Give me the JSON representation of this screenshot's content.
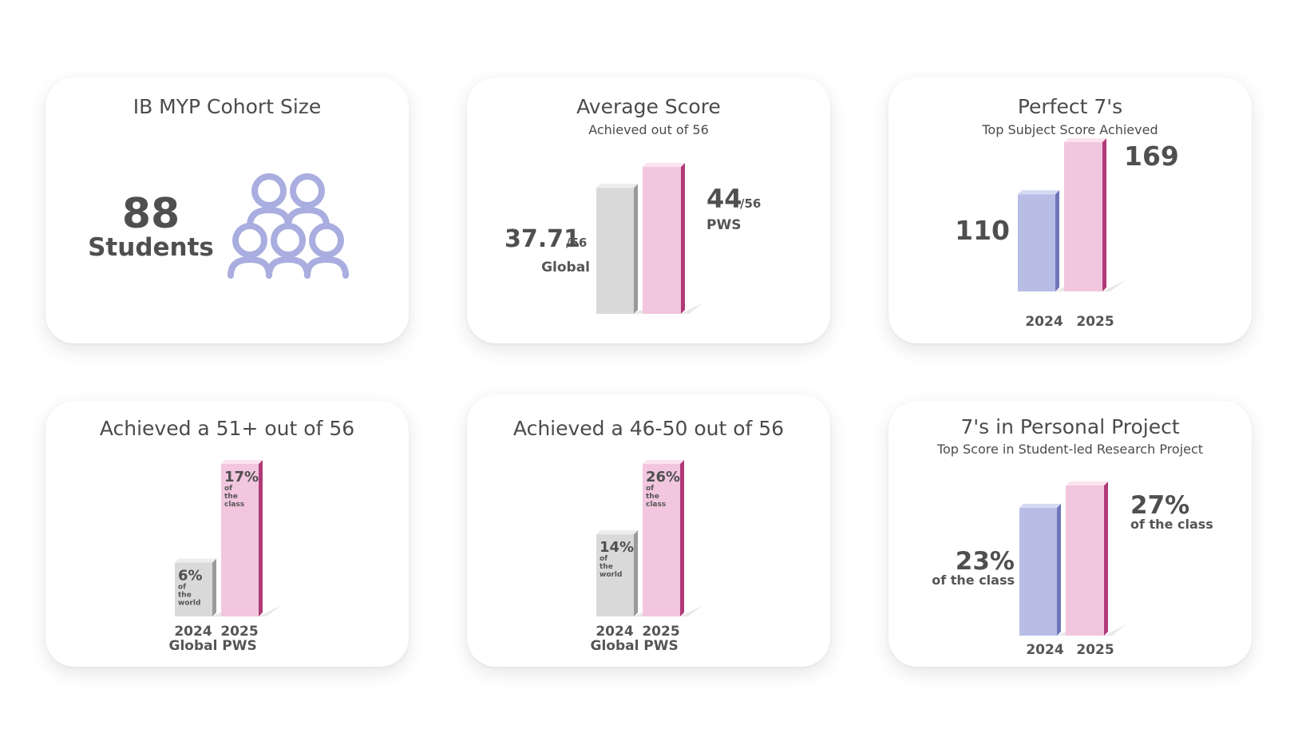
{
  "colors": {
    "pink_face": "#f2c6de",
    "pink_side": "#b03a78",
    "pink_top": "#fbe4f0",
    "gray_face": "#d9d9d9",
    "gray_side": "#9a9a9a",
    "gray_top": "#ececec",
    "blue_face": "#b8bde6",
    "blue_side": "#6f76b8",
    "blue_top": "#d6d9f3",
    "icon": "#a9addf"
  },
  "chart_data": [
    {
      "type": "other",
      "title": "IB MYP Cohort Size",
      "value": 88,
      "value_text": "88",
      "unit_text": "Students",
      "icon": "people-group-icon"
    },
    {
      "type": "bar",
      "title": "Average Score",
      "subtitle": "Achieved out of 56",
      "bars": [
        {
          "value": 37.71,
          "value_text": "37.71",
          "suffix": "/56",
          "label": "Global",
          "color": "gray"
        },
        {
          "value": 44,
          "value_text": "44",
          "suffix": "/56",
          "label": "PWS",
          "color": "pink"
        }
      ],
      "ylim": [
        0,
        56
      ]
    },
    {
      "type": "bar",
      "title": "Perfect 7's",
      "subtitle": "Top Subject Score Achieved",
      "categories": [
        "2024",
        "2025"
      ],
      "bars": [
        {
          "value": 110,
          "value_text": "110",
          "color": "blue"
        },
        {
          "value": 169,
          "value_text": "169",
          "color": "pink"
        }
      ]
    },
    {
      "type": "bar",
      "title": "Achieved a 51+ out of 56",
      "bars": [
        {
          "value": 6,
          "value_text": "6%",
          "sub": [
            "of",
            "the",
            "world"
          ],
          "year": "2024",
          "label": "Global",
          "color": "gray"
        },
        {
          "value": 17,
          "value_text": "17%",
          "sub": [
            "of",
            "the",
            "class"
          ],
          "year": "2025",
          "label": "PWS",
          "color": "pink"
        }
      ]
    },
    {
      "type": "bar",
      "title": "Achieved a 46-50 out of 56",
      "bars": [
        {
          "value": 14,
          "value_text": "14%",
          "sub": [
            "of",
            "the",
            "world"
          ],
          "year": "2024",
          "label": "Global",
          "color": "gray"
        },
        {
          "value": 26,
          "value_text": "26%",
          "sub": [
            "of",
            "the",
            "class"
          ],
          "year": "2025",
          "label": "PWS",
          "color": "pink"
        }
      ]
    },
    {
      "type": "bar",
      "title": "7's in Personal Project",
      "subtitle": "Top Score in Student-led Research Project",
      "categories": [
        "2024",
        "2025"
      ],
      "bars": [
        {
          "value": 23,
          "value_text": "23%",
          "caption": "of the class",
          "color": "blue"
        },
        {
          "value": 27,
          "value_text": "27%",
          "caption": "of the class",
          "color": "pink"
        }
      ]
    }
  ]
}
